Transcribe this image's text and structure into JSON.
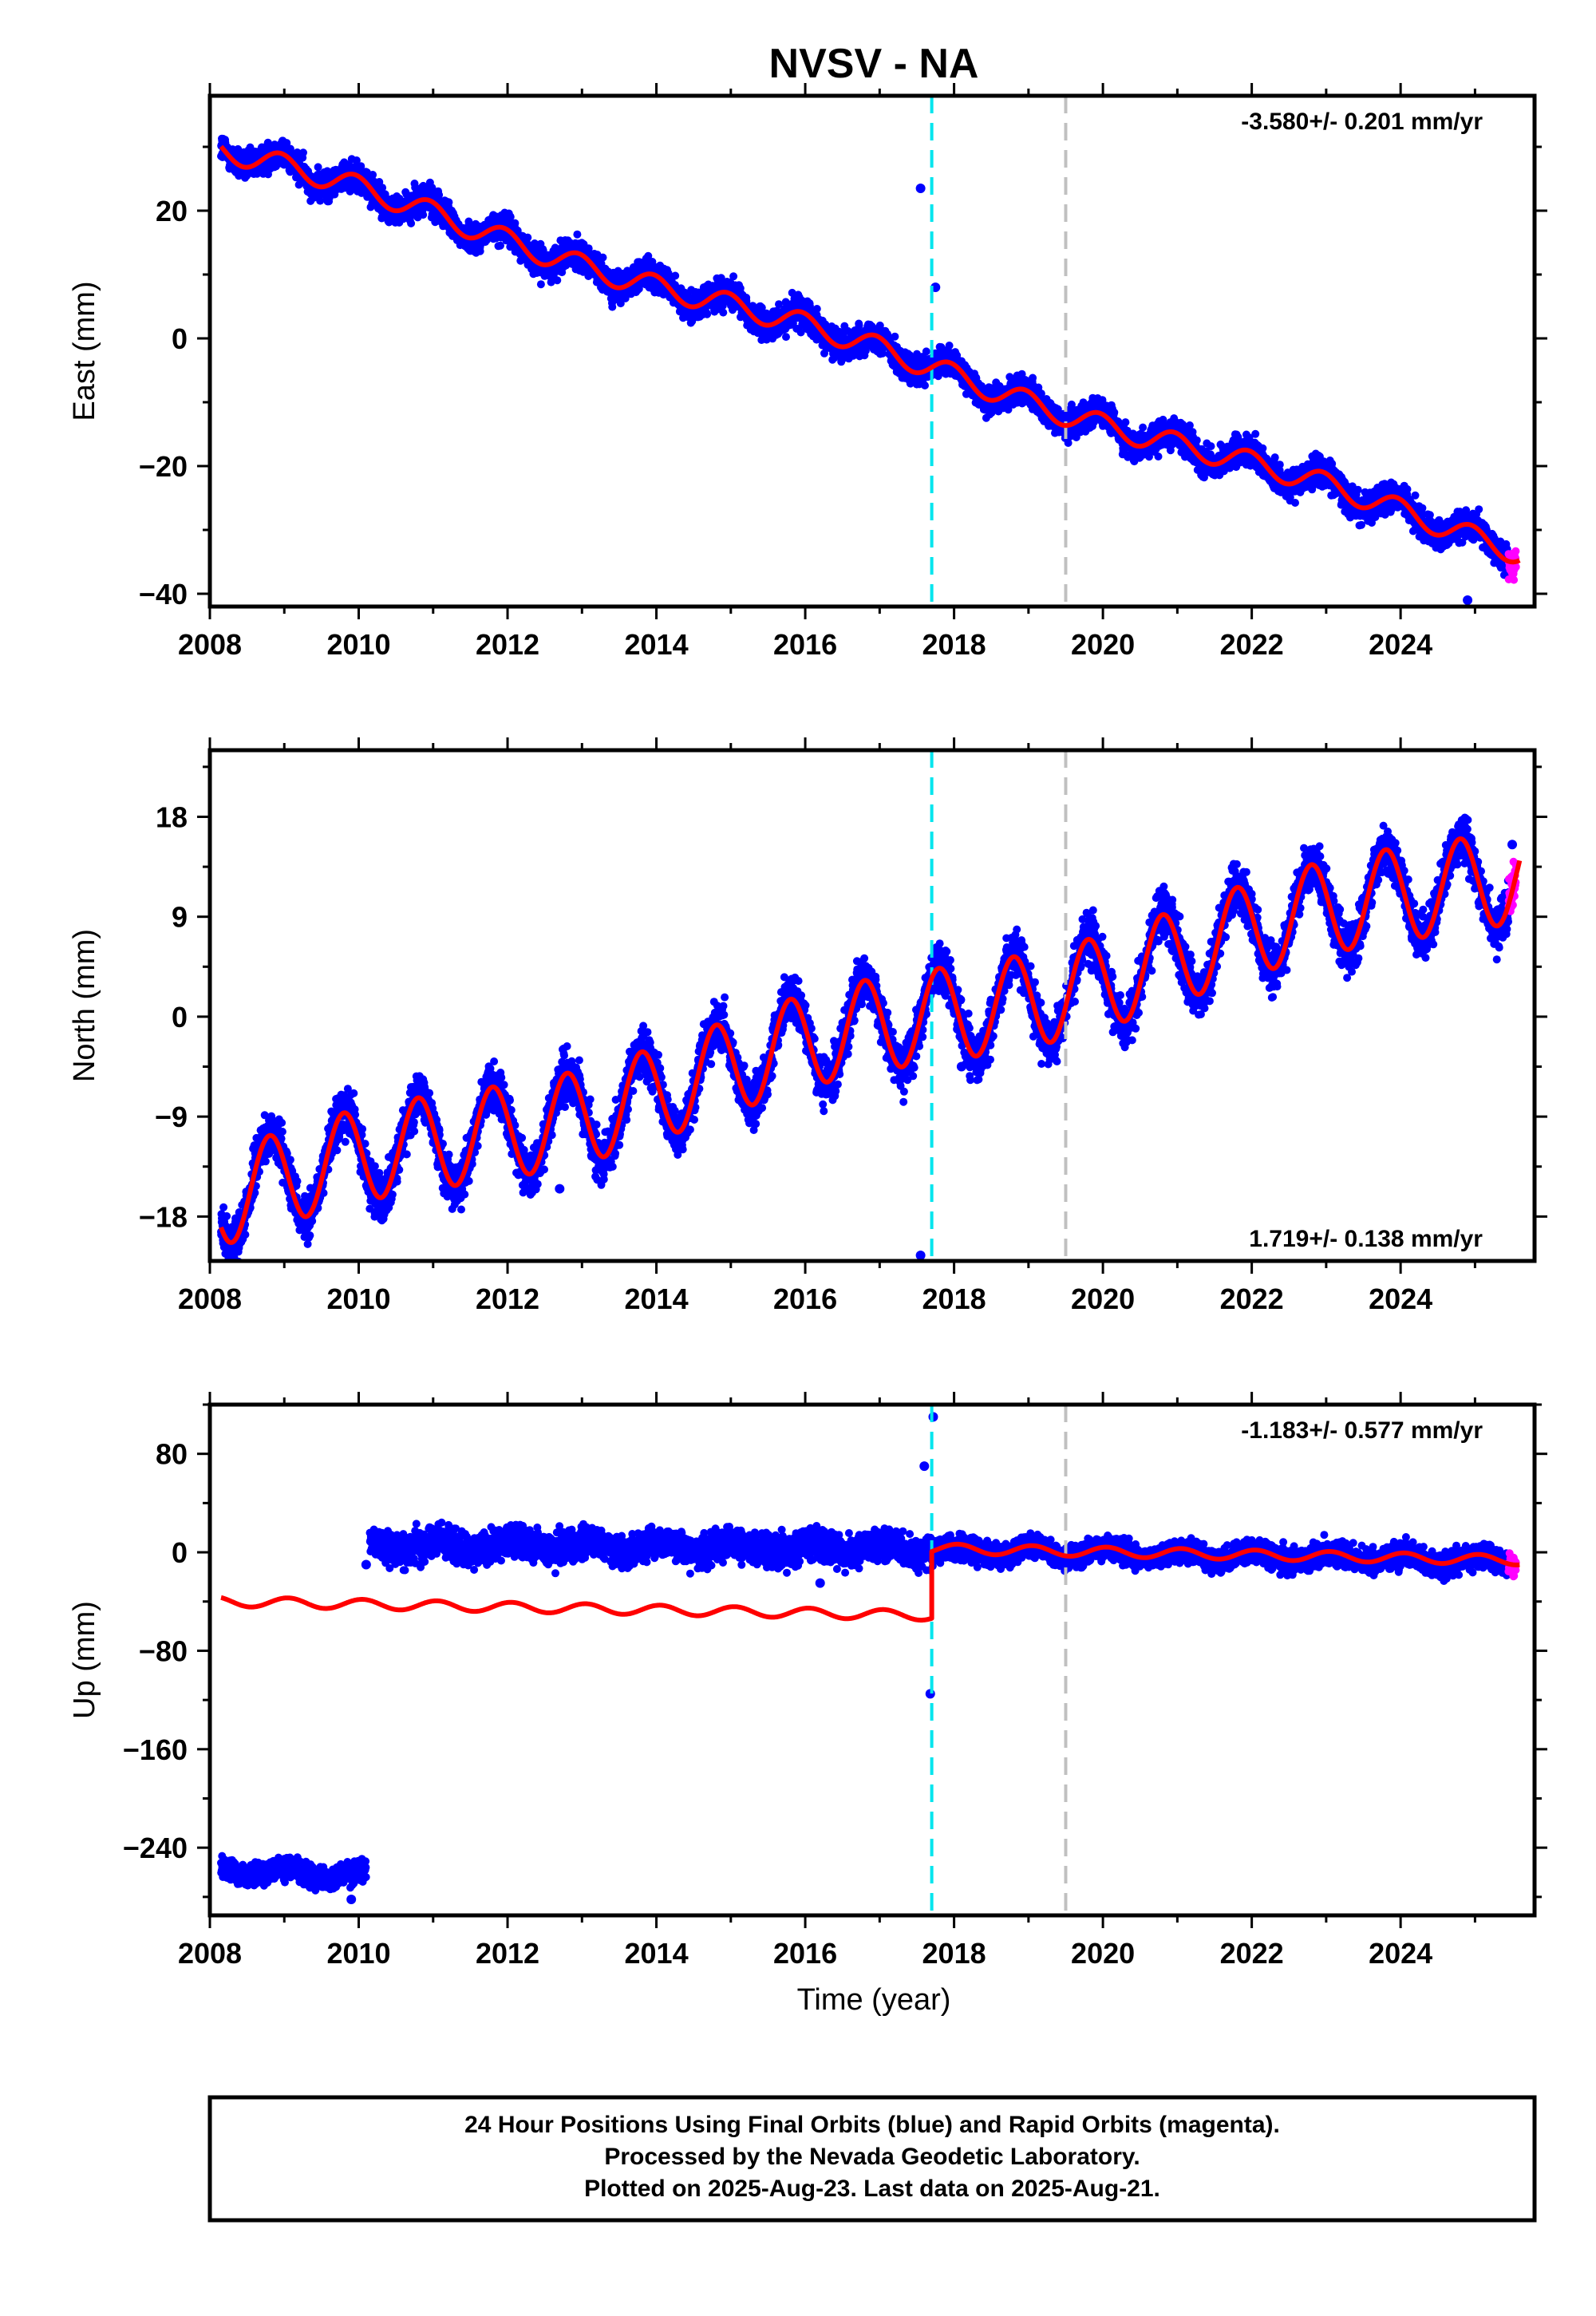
{
  "title": "NVSV - NA",
  "x_axis_label": "Time (year)",
  "footer": {
    "lines": [
      "24 Hour Positions Using Final Orbits (blue) and Rapid Orbits (magenta).",
      "Processed by the Nevada Geodetic Laboratory.",
      "Plotted on 2025-Aug-23. Last data on 2025-Aug-21."
    ]
  },
  "colors": {
    "final_orbits": "#0000ff",
    "rapid_orbits": "#ff00ff",
    "model_fit": "#ff0000",
    "equipment_change": "#00e5ee",
    "other_event": "#c0c0c0",
    "frame": "#000000"
  },
  "chart_data": [
    {
      "type": "scatter",
      "name": "east",
      "ylabel": "East (mm)",
      "rate_text": "-3.580+/- 0.201 mm/yr",
      "rate_position": "top-right",
      "xlim": [
        2008.0,
        2025.8
      ],
      "ylim": [
        -42,
        38
      ],
      "xticks": [
        2008,
        2010,
        2012,
        2014,
        2016,
        2018,
        2020,
        2022,
        2024
      ],
      "yticks": [
        -40,
        -20,
        0,
        20
      ],
      "data_start": 2008.15,
      "data_end": 2025.55,
      "rapid_start": 2025.45,
      "events": [
        {
          "x": 2017.7,
          "kind": "equipment_change"
        },
        {
          "x": 2019.5,
          "kind": "other_event"
        }
      ],
      "model": {
        "segments": [
          {
            "x0": 2008.15,
            "x1": 2025.6,
            "y0": 29.5,
            "slope": -3.58,
            "wobble_amp": 0.8
          }
        ],
        "annual_amp": 1.8,
        "annual_phase": 0.3
      },
      "scatter_noise": 1.6,
      "outliers": [
        [
          2017.55,
          23.5
        ],
        [
          2017.75,
          8.0
        ],
        [
          2024.9,
          -41.0
        ]
      ]
    },
    {
      "type": "scatter",
      "name": "north",
      "ylabel": "North (mm)",
      "rate_text": "1.719+/- 0.138 mm/yr",
      "rate_position": "bottom-right",
      "xlim": [
        2008.0,
        2025.8
      ],
      "ylim": [
        -22,
        24
      ],
      "xticks": [
        2008,
        2010,
        2012,
        2014,
        2016,
        2018,
        2020,
        2022,
        2024
      ],
      "yticks": [
        -18,
        -9,
        0,
        9,
        18
      ],
      "data_start": 2008.15,
      "data_end": 2025.55,
      "rapid_start": 2025.45,
      "events": [
        {
          "x": 2017.7,
          "kind": "equipment_change"
        },
        {
          "x": 2019.5,
          "kind": "other_event"
        }
      ],
      "model": {
        "segments": [
          {
            "x0": 2008.15,
            "x1": 2025.6,
            "y0": -16.5,
            "slope": 1.719,
            "wobble_amp": 0.8
          }
        ],
        "annual_amp": 4.2,
        "annual_phase": 0.45
      },
      "scatter_noise": 1.5,
      "outliers": [
        [
          2017.55,
          -21.5
        ],
        [
          2012.7,
          -15.5
        ],
        [
          2018.1,
          -4.5
        ],
        [
          2025.5,
          15.5
        ]
      ]
    },
    {
      "type": "scatter",
      "name": "up",
      "ylabel": "Up (mm)",
      "rate_text": "-1.183+/- 0.577 mm/yr",
      "rate_position": "top-right",
      "xlim": [
        2008.0,
        2025.8
      ],
      "ylim": [
        -295,
        120
      ],
      "xticks": [
        2008,
        2010,
        2012,
        2014,
        2016,
        2018,
        2020,
        2022,
        2024
      ],
      "yticks": [
        -240,
        -160,
        -80,
        0,
        80
      ],
      "data_segments": [
        {
          "x0": 2008.15,
          "x1": 2010.1,
          "y0": -258,
          "slope": -2.5,
          "noise": 6
        },
        {
          "x0": 2010.15,
          "x1": 2017.7,
          "y0": 6,
          "slope": -0.4,
          "noise": 9
        },
        {
          "x0": 2017.7,
          "x1": 2025.55,
          "y0": 2,
          "slope": -1.183,
          "noise": 7
        }
      ],
      "rapid_start": 2025.45,
      "events": [
        {
          "x": 2017.7,
          "kind": "equipment_change"
        },
        {
          "x": 2019.5,
          "kind": "other_event"
        }
      ],
      "model": {
        "segments": [
          {
            "x0": 2008.15,
            "x1": 2017.7,
            "y0": -40,
            "slope": -1.183,
            "wobble_amp": 0
          },
          {
            "x0": 2017.7,
            "x1": 2025.6,
            "y0": 3,
            "slope": -1.183,
            "wobble_amp": 0
          }
        ],
        "annual_amp": 4.0,
        "annual_phase": 0.2
      },
      "outliers": [
        [
          2017.6,
          70
        ],
        [
          2017.72,
          110
        ],
        [
          2017.68,
          -115
        ],
        [
          2009.9,
          -282
        ],
        [
          2016.2,
          -25
        ],
        [
          2010.1,
          -10
        ]
      ]
    }
  ]
}
